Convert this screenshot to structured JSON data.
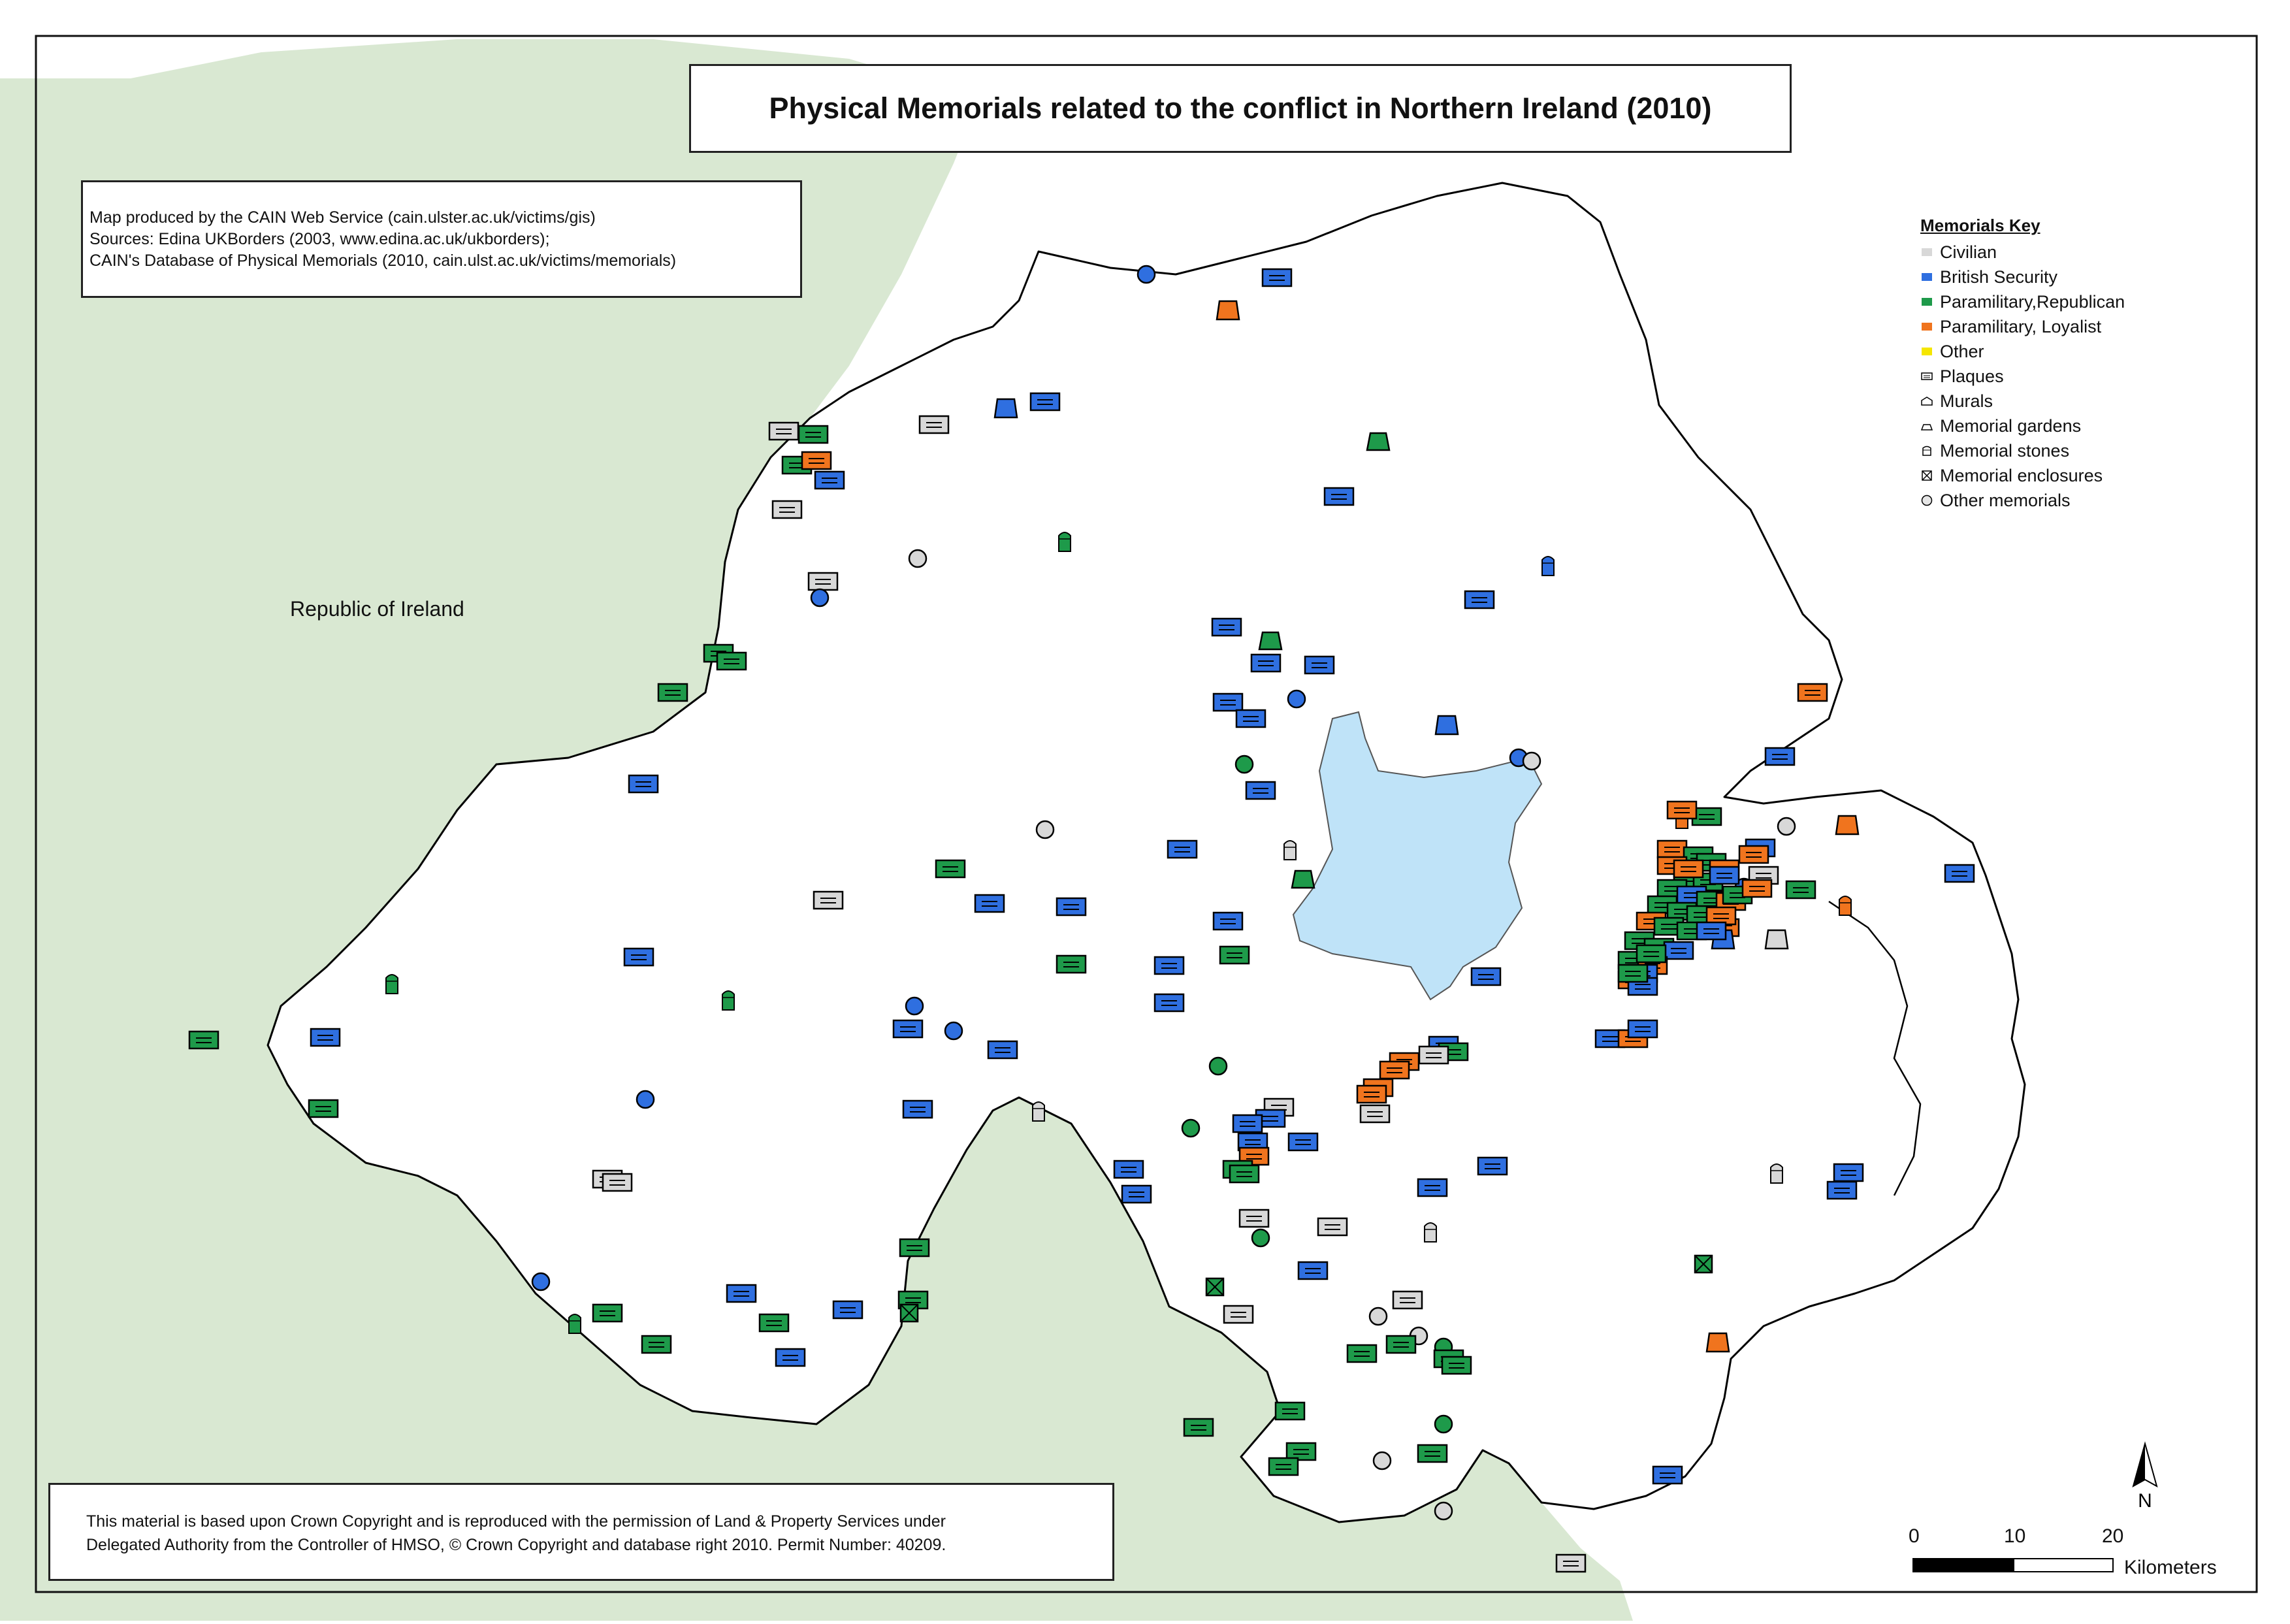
{
  "map": {
    "title": "Physical Memorials related to the conflict in Northern Ireland (2010)",
    "credits": [
      "Map produced by the CAIN Web Service (cain.ulster.ac.uk/victims/gis)",
      "Sources: Edina UKBorders (2003, www.edina.ac.uk/ukborders);",
      "CAIN's Database of Physical Memorials  (2010, cain.ulst.ac.uk/victims/memorials)"
    ],
    "copyright": [
      "This material is based upon Crown Copyright and is reproduced with the permission of Land & Property Services under",
      "Delegated Authority from the Controller of HMSO, © Crown Copyright and database right 2010. Permit Number: 40209."
    ],
    "region_label": "Republic of Ireland"
  },
  "legend": {
    "title": "Memorials Key",
    "categories": [
      {
        "label": "Civilian",
        "color": "#d8d8d8"
      },
      {
        "label": "British Security",
        "color": "#2f6fe0"
      },
      {
        "label": "Paramilitary,Republican",
        "color": "#1e9a4a"
      },
      {
        "label": "Paramilitary, Loyalist",
        "color": "#f0741e"
      },
      {
        "label": "Other",
        "color": "#f5e600"
      }
    ],
    "types": [
      {
        "label": "Plaques",
        "icon": "plaque-icon"
      },
      {
        "label": "Murals",
        "icon": "mural-icon"
      },
      {
        "label": "Memorial gardens",
        "icon": "garden-icon"
      },
      {
        "label": "Memorial stones",
        "icon": "stone-icon"
      },
      {
        "label": "Memorial enclosures",
        "icon": "enclosure-icon"
      },
      {
        "label": "Other memorials",
        "icon": "other-memorial-icon"
      }
    ]
  },
  "north": {
    "label": "N"
  },
  "scale": {
    "ticks": [
      "0",
      "10",
      "20"
    ],
    "unit": "Kilometers"
  },
  "colors": {
    "ni_fill": "#ffffff",
    "roi_fill": "#d9e8d2",
    "lough_fill": "#bfe3f8",
    "civilian": "#d8d8d8",
    "british_security": "#2f6fe0",
    "republican": "#1e9a4a",
    "loyalist": "#f0741e"
  }
}
